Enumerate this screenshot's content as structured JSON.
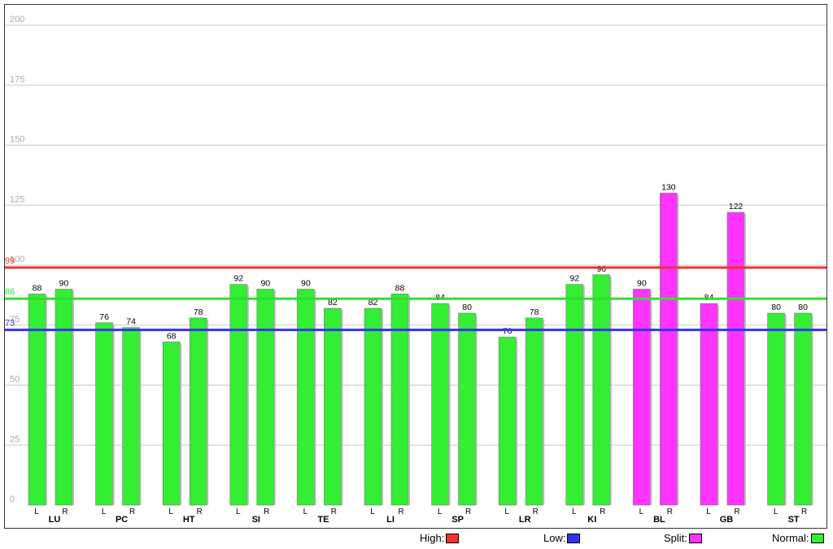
{
  "chart_data": {
    "type": "bar",
    "title": "",
    "xlabel": "",
    "ylabel": "",
    "ylim": [
      0,
      200
    ],
    "y_ticks": [
      0,
      25,
      50,
      75,
      100,
      125,
      150,
      175,
      200
    ],
    "grid": true,
    "categories": [
      "LU",
      "PC",
      "HT",
      "SI",
      "TE",
      "LI",
      "SP",
      "LR",
      "KI",
      "BL",
      "GB",
      "ST"
    ],
    "sides": [
      "L",
      "R"
    ],
    "values": [
      {
        "category": "LU",
        "L": 88,
        "R": 90,
        "status": "Normal"
      },
      {
        "category": "PC",
        "L": 76,
        "R": 74,
        "status": "Normal"
      },
      {
        "category": "HT",
        "L": 68,
        "R": 78,
        "status": "Normal"
      },
      {
        "category": "SI",
        "L": 92,
        "R": 90,
        "status": "Normal"
      },
      {
        "category": "TE",
        "L": 90,
        "R": 82,
        "status": "Normal"
      },
      {
        "category": "LI",
        "L": 82,
        "R": 88,
        "status": "Normal"
      },
      {
        "category": "SP",
        "L": 84,
        "R": 80,
        "status": "Normal"
      },
      {
        "category": "LR",
        "L": 70,
        "R": 78,
        "status": "Normal"
      },
      {
        "category": "KI",
        "L": 92,
        "R": 96,
        "status": "Normal"
      },
      {
        "category": "BL",
        "L": 90,
        "R": 130,
        "status": "Split"
      },
      {
        "category": "GB",
        "L": 84,
        "R": 122,
        "status": "Split"
      },
      {
        "category": "ST",
        "L": 80,
        "R": 80,
        "status": "Normal"
      }
    ],
    "reference_lines": [
      {
        "name": "High",
        "value": 99,
        "color": "#ee3333"
      },
      {
        "name": "Normal",
        "value": 86,
        "color": "#33dd33"
      },
      {
        "name": "Low",
        "value": 73,
        "color": "#3333ee"
      }
    ],
    "colors": {
      "Normal": "#33ee33",
      "Split": "#ff33ff"
    }
  },
  "legend": {
    "items": [
      {
        "label": "High:",
        "color": "#ee3333"
      },
      {
        "label": "Low:",
        "color": "#3333ee"
      },
      {
        "label": "Split:",
        "color": "#ff33ff"
      },
      {
        "label": "Normal:",
        "color": "#33ee33"
      }
    ]
  }
}
